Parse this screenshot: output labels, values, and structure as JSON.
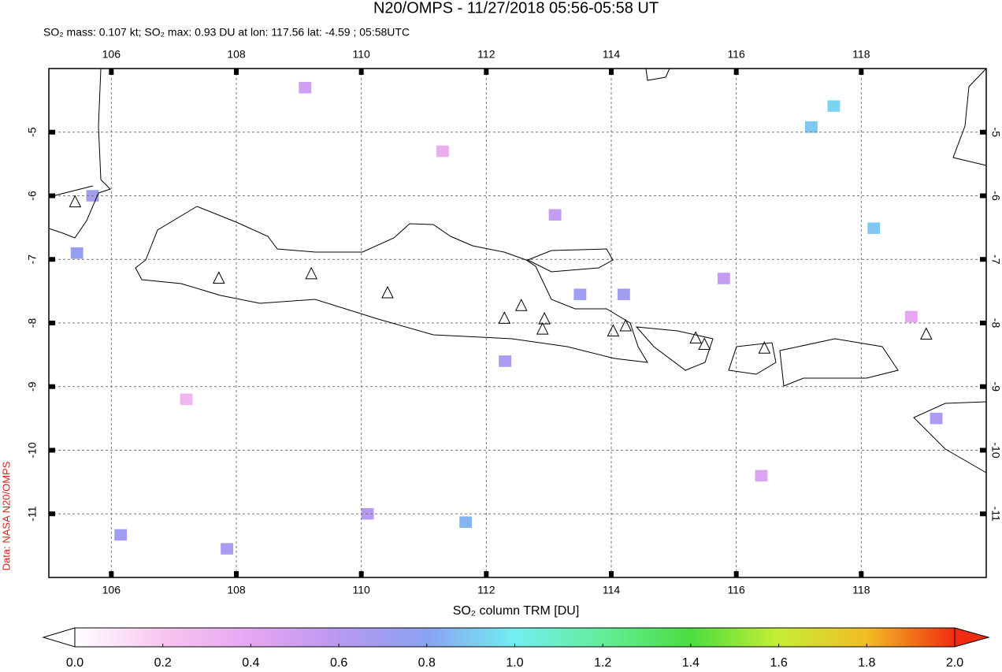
{
  "chart_data": {
    "type": "map",
    "title": "N20/OMPS - 11/27/2018 05:56-05:58 UT",
    "subtitle": "SO₂ mass: 0.107 kt; SO₂ max: 0.93 DU at lon: 117.56 lat: -4.59 ; 05:58UTC",
    "source": "Data: NASA N20/OMPS",
    "xlim": [
      105,
      120
    ],
    "ylim": [
      -12,
      -4
    ],
    "xticks": [
      106,
      108,
      110,
      112,
      114,
      116,
      118
    ],
    "yticks": [
      -5,
      -6,
      -7,
      -8,
      -9,
      -10,
      -11
    ],
    "grid": true,
    "pixels": {
      "lon": [
        117.56,
        117.2,
        118.2,
        111.67,
        106.15,
        107.85,
        105.7,
        105.45,
        113.5,
        114.2,
        112.3,
        119.2,
        115.8,
        109.1,
        110.1,
        113.1,
        116.4,
        107.2,
        111.3,
        118.8
      ],
      "lat": [
        -4.59,
        -4.92,
        -6.51,
        -11.13,
        -11.33,
        -11.55,
        -6.0,
        -6.9,
        -7.55,
        -7.55,
        -8.6,
        -9.5,
        -7.3,
        -4.3,
        -11.0,
        -6.3,
        -10.4,
        -9.2,
        -5.3,
        -7.9
      ],
      "values": [
        0.93,
        0.9,
        0.9,
        0.85,
        0.7,
        0.65,
        0.7,
        0.75,
        0.7,
        0.7,
        0.65,
        0.65,
        0.55,
        0.5,
        0.6,
        0.55,
        0.45,
        0.3,
        0.35,
        0.4
      ]
    },
    "volcanoes": {
      "lon": [
        105.42,
        107.72,
        109.2,
        110.42,
        112.29,
        112.56,
        112.93,
        112.9,
        114.03,
        114.23,
        115.35,
        115.49,
        116.45,
        119.04
      ],
      "lat": [
        -6.1,
        -7.3,
        -7.23,
        -7.53,
        -7.93,
        -7.73,
        -7.94,
        -8.1,
        -8.13,
        -8.05,
        -8.24,
        -8.34,
        -8.4,
        -8.18
      ]
    },
    "colorbar": {
      "label": "SO₂ column TRM [DU]",
      "lim": [
        0,
        2
      ],
      "ticks": [
        {
          "value": 0,
          "label": "0.0"
        },
        0.2,
        0.4,
        0.6,
        0.8,
        {
          "value": 1,
          "label": "1.0"
        },
        1.2,
        1.4,
        1.6,
        1.8,
        {
          "value": 2,
          "label": "2.0"
        }
      ],
      "colors": [
        "#ffffff",
        "#f7c6ef",
        "#e6a6f2",
        "#b899f2",
        "#8aa2f2",
        "#72eef0",
        "#62ee9a",
        "#4ade3e",
        "#c6ee34",
        "#f2bc24",
        "#f02c10"
      ]
    }
  }
}
